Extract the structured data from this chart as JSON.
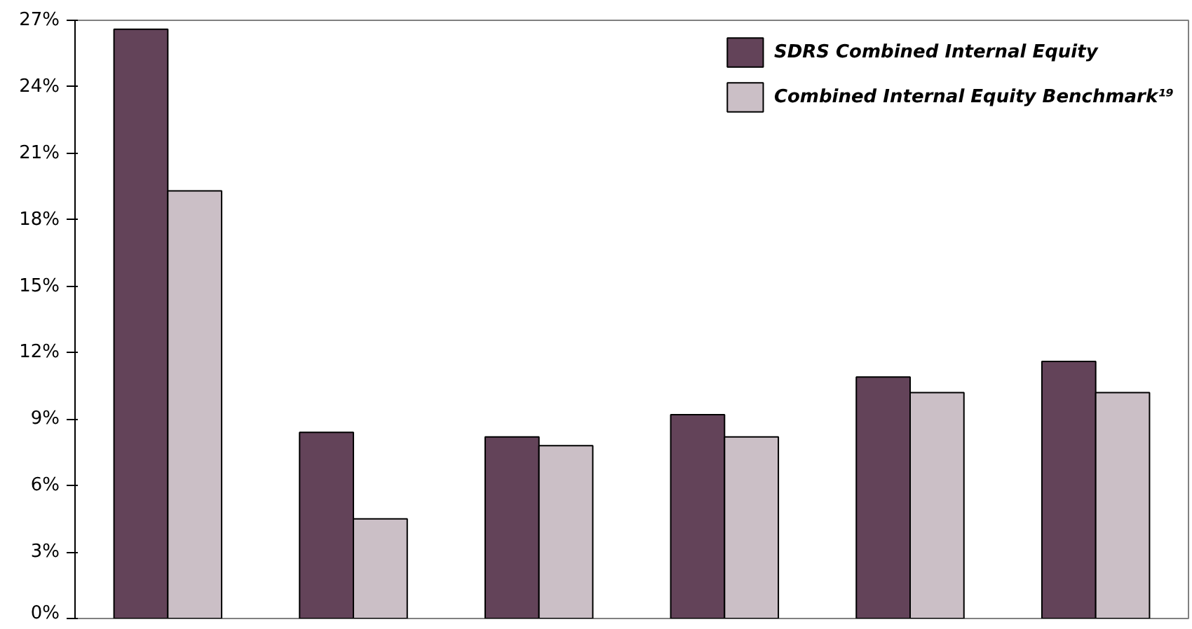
{
  "chart_data": {
    "type": "bar",
    "categories": [
      null,
      null,
      null,
      null,
      null,
      null
    ],
    "series": [
      {
        "name": "SDRS Combined Internal Equity",
        "color": "#634359",
        "values": [
          26.6,
          8.4,
          8.2,
          9.2,
          10.9,
          11.6
        ]
      },
      {
        "name": "Combined Internal Equity Benchmark¹⁹",
        "color": "#cbbfc6",
        "values": [
          19.3,
          4.5,
          7.8,
          8.2,
          10.2,
          10.2
        ]
      }
    ],
    "ylim": [
      0,
      27
    ],
    "yticks": [
      {
        "value": 0,
        "label": "0%"
      },
      {
        "value": 3,
        "label": "3%"
      },
      {
        "value": 6,
        "label": "6%"
      },
      {
        "value": 9,
        "label": "9%"
      },
      {
        "value": 12,
        "label": "12%"
      },
      {
        "value": 15,
        "label": "15%"
      },
      {
        "value": 18,
        "label": "18%"
      },
      {
        "value": 21,
        "label": "21%"
      },
      {
        "value": 24,
        "label": "24%"
      },
      {
        "value": 27,
        "label": "27%"
      }
    ],
    "grid": false,
    "legend": "top right"
  }
}
